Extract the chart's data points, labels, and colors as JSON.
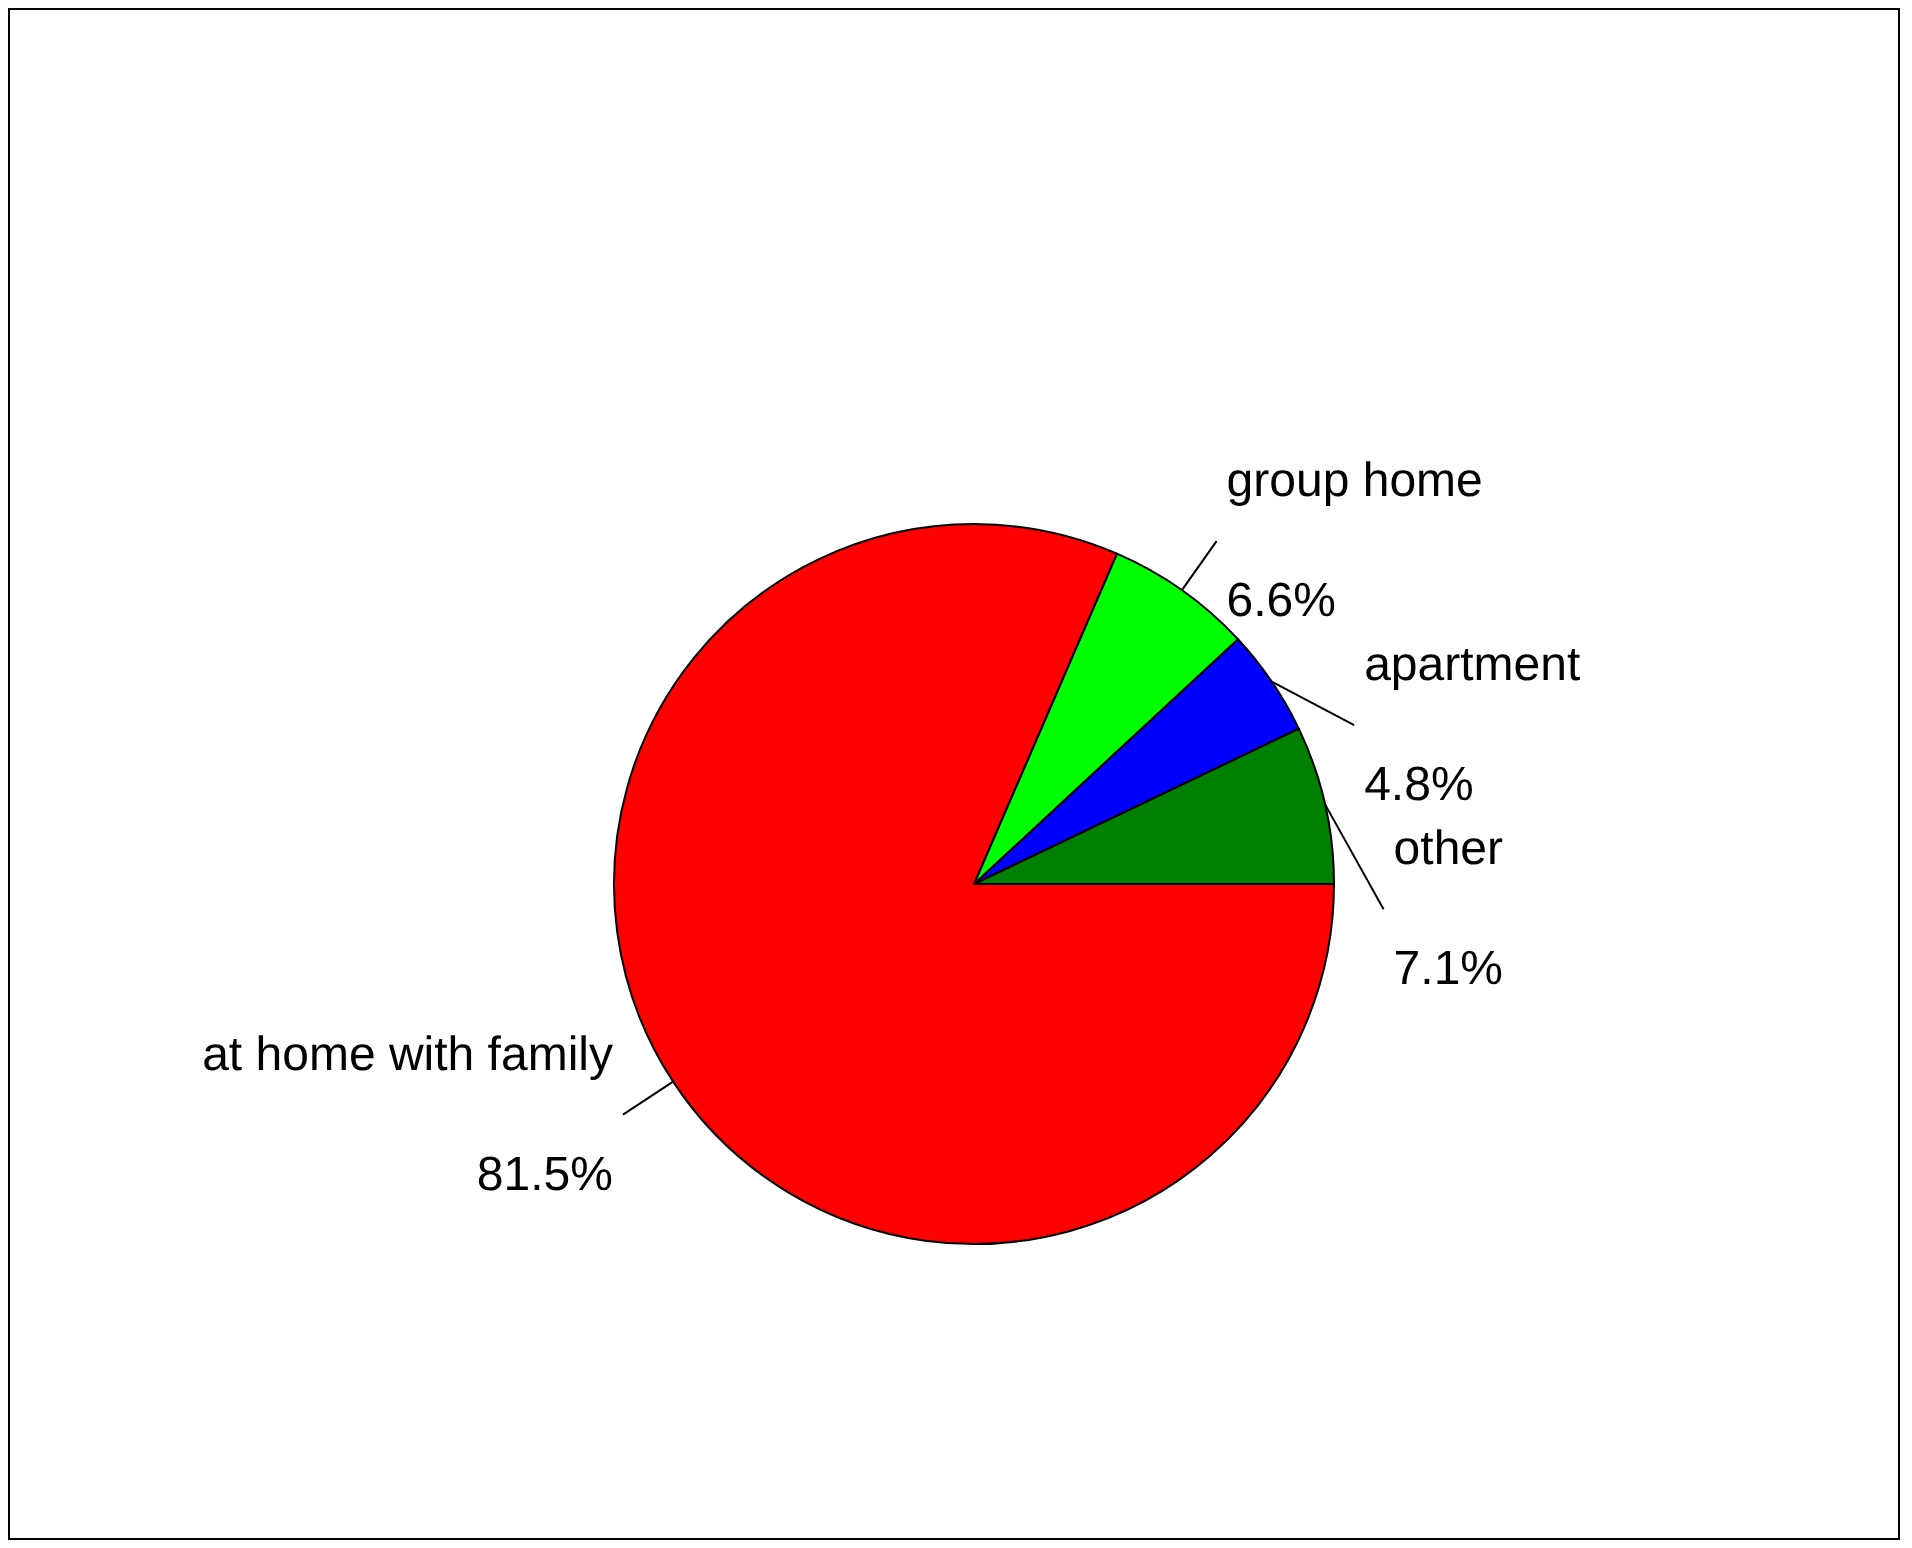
{
  "chart_data": {
    "type": "pie",
    "categories": [
      "other",
      "apartment",
      "group home",
      "at home with family"
    ],
    "values": [
      7.1,
      4.8,
      6.6,
      81.5
    ],
    "value_labels": [
      "7.1%",
      "4.8%",
      "6.6%",
      "81.5%"
    ],
    "colors": [
      "#008000",
      "#0000ff",
      "#00ff00",
      "#ff0000"
    ]
  }
}
